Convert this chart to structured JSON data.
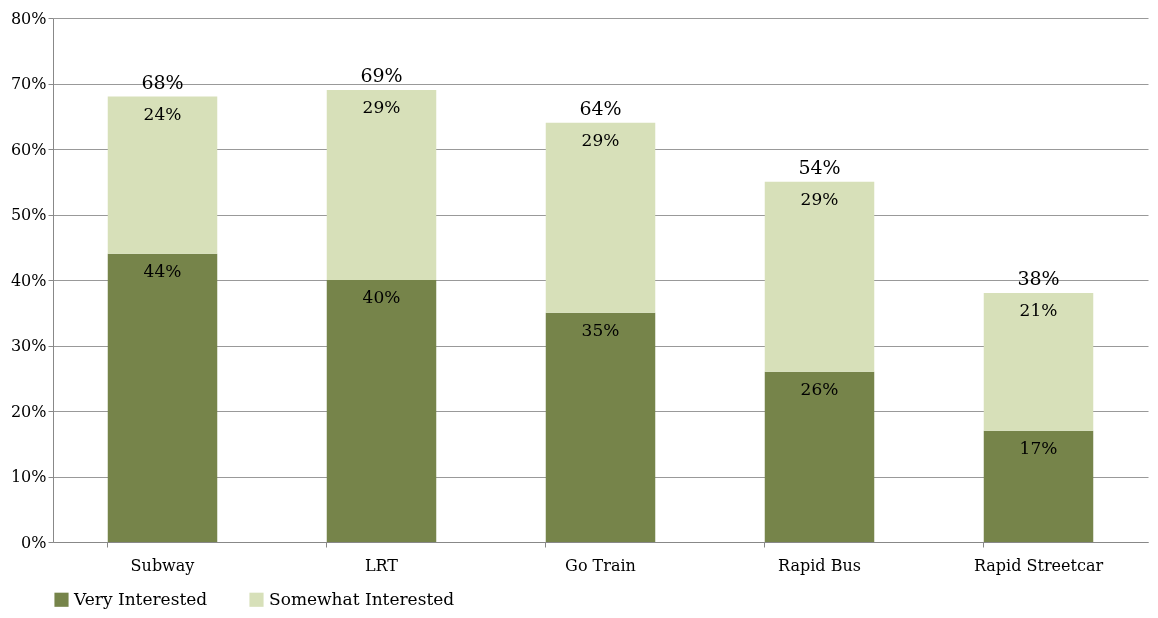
{
  "chart_data": {
    "type": "bar",
    "stacked": true,
    "categories": [
      "Subway",
      "LRT",
      "Go Train",
      "Rapid Bus",
      "Rapid Streetcar"
    ],
    "series": [
      {
        "name": "Very Interested",
        "color": "#76844a",
        "values": [
          44,
          40,
          35,
          26,
          17
        ],
        "value_labels": [
          "44%",
          "40%",
          "35%",
          "26%",
          "17%"
        ]
      },
      {
        "name": "Somewhat Interested",
        "color": "#d7e0b9",
        "values": [
          24,
          29,
          29,
          29,
          21
        ],
        "value_labels": [
          "24%",
          "29%",
          "29%",
          "29%",
          "21%"
        ]
      }
    ],
    "totals": [
      "68%",
      "69%",
      "64%",
      "54%",
      "38%"
    ],
    "ylim": [
      0,
      80
    ],
    "yticks": [
      {
        "value": 0,
        "label": "0%"
      },
      {
        "value": 10,
        "label": "10%"
      },
      {
        "value": 20,
        "label": "20%"
      },
      {
        "value": 30,
        "label": "30%"
      },
      {
        "value": 40,
        "label": "40%"
      },
      {
        "value": 50,
        "label": "50%"
      },
      {
        "value": 60,
        "label": "60%"
      },
      {
        "value": 70,
        "label": "70%"
      },
      {
        "value": 80,
        "label": "80%"
      }
    ],
    "grid": "y",
    "legend": "bottom"
  }
}
